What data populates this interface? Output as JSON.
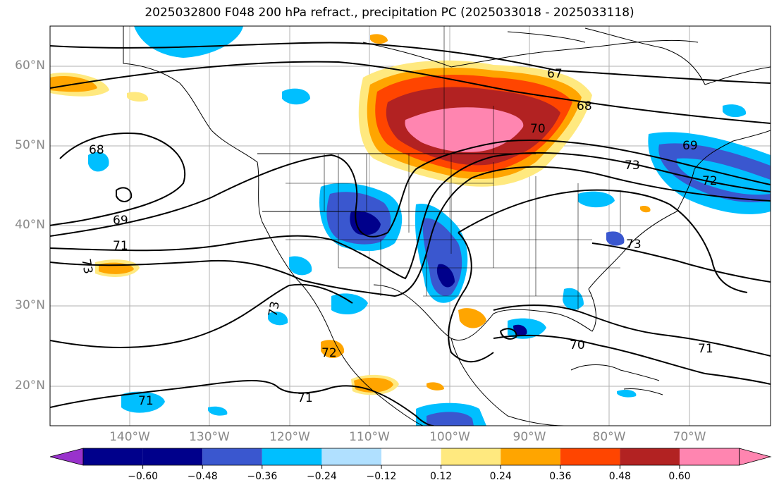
{
  "title": "2025032800 F048 200 hPa refract., precipitation PC (2025033018 - 2025033118)",
  "lat_labels": [
    "60°N",
    "50°N",
    "40°N",
    "30°N",
    "20°N"
  ],
  "lon_labels": [
    "140°W",
    "130°W",
    "120°W",
    "110°W",
    "100°W",
    "90°W",
    "80°W",
    "70°W"
  ],
  "contour_labels": [
    "67",
    "68",
    "70",
    "69",
    "73",
    "68",
    "69",
    "71",
    "73",
    "73",
    "72",
    "71",
    "71",
    "70",
    "71",
    "73",
    "72"
  ],
  "colorbar": {
    "ticks": [
      "−0.60",
      "−0.48",
      "−0.36",
      "−0.24",
      "−0.12",
      "0.12",
      "0.24",
      "0.36",
      "0.48",
      "0.60"
    ],
    "colors": [
      "#9932cc",
      "#00008b",
      "#3a57cf",
      "#00bfff",
      "#b0e0ff",
      "#ffffff",
      "#ffe97f",
      "#ffa500",
      "#ff4500",
      "#b22222",
      "#ff85b0"
    ]
  }
}
